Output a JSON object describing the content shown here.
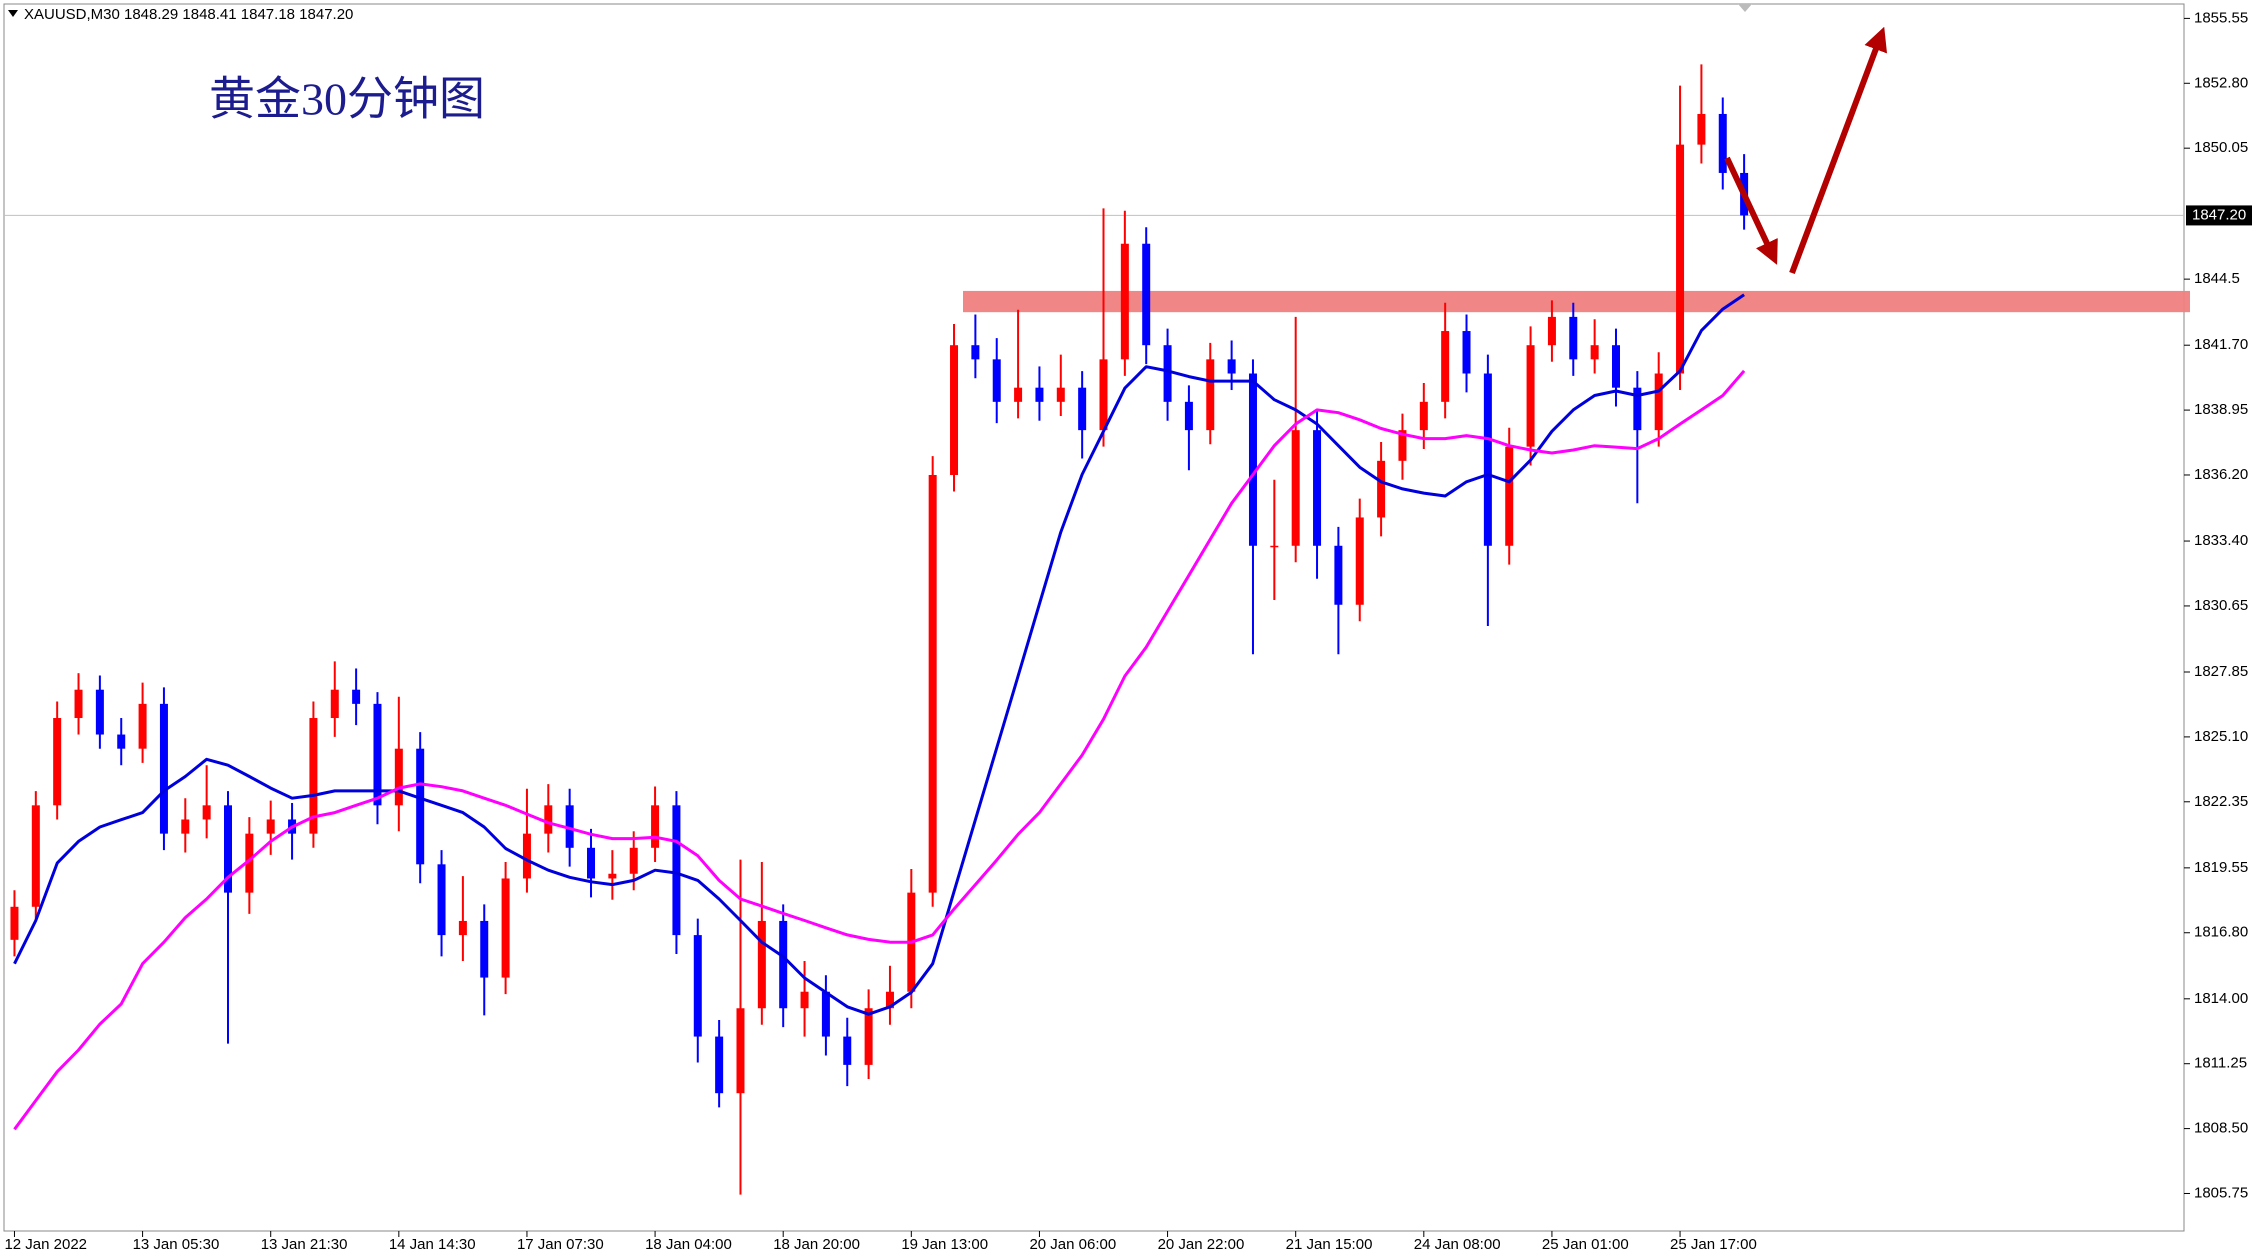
{
  "chart_data": {
    "type": "candlestick",
    "symbol": "XAUUSD,M30",
    "header_prices": "1848.29 1848.41 1847.18 1847.20",
    "title": "黄金30分钟图",
    "up_color": "#ff0000",
    "down_color": "#0000ff",
    "ylim": [
      1804.16,
      1856.16
    ],
    "xlim": [
      -0.49,
      101.6
    ],
    "yticks": [
      1855.55,
      {
        "value": 1852.8,
        "label": "1852.80"
      },
      1850.05,
      1844.5,
      {
        "value": 1841.7,
        "label": "1841.70"
      },
      1838.95,
      {
        "value": 1836.2,
        "label": "1836.20"
      },
      {
        "value": 1833.4,
        "label": "1833.40"
      },
      1830.65,
      1827.85,
      {
        "value": 1825.1,
        "label": "1825.10"
      },
      1822.35,
      1819.55,
      {
        "value": 1816.8,
        "label": "1816.80"
      },
      {
        "value": 1814.0,
        "label": "1814.00"
      },
      1811.25,
      {
        "value": 1808.5,
        "label": "1808.50"
      },
      1805.75
    ],
    "current_price": {
      "value": 1847.2,
      "label": "1847.20"
    },
    "xticks": [
      {
        "value": 0,
        "label": "12 Jan 2022"
      },
      {
        "value": 6,
        "label": "13 Jan 05:30"
      },
      {
        "value": 12,
        "label": "13 Jan 21:30"
      },
      {
        "value": 18,
        "label": "14 Jan 14:30"
      },
      {
        "value": 24,
        "label": "17 Jan 07:30"
      },
      {
        "value": 30,
        "label": "18 Jan 04:00"
      },
      {
        "value": 36,
        "label": "18 Jan 20:00"
      },
      {
        "value": 42,
        "label": "19 Jan 13:00"
      },
      {
        "value": 48,
        "label": "20 Jan 06:00"
      },
      {
        "value": 54,
        "label": "20 Jan 22:00"
      },
      {
        "value": 60,
        "label": "21 Jan 15:00"
      },
      {
        "value": 66,
        "label": "24 Jan 08:00"
      },
      {
        "value": 72,
        "label": "25 Jan 01:00"
      },
      {
        "value": 78,
        "label": "25 Jan 17:00"
      }
    ],
    "resistance_zone": {
      "low": 1843.1,
      "high": 1844.0,
      "color": "#f08080"
    },
    "ohlc": [
      [
        1816.5,
        1818.6,
        1815.8,
        1817.9
      ],
      [
        1817.9,
        1822.8,
        1817.3,
        1822.2
      ],
      [
        1822.2,
        1826.6,
        1821.6,
        1825.9
      ],
      [
        1825.9,
        1827.8,
        1825.2,
        1827.1
      ],
      [
        1827.1,
        1827.7,
        1824.6,
        1825.2
      ],
      [
        1825.2,
        1825.9,
        1823.9,
        1824.6
      ],
      [
        1824.6,
        1827.4,
        1824.0,
        1826.5
      ],
      [
        1826.5,
        1827.2,
        1820.3,
        1821.0
      ],
      [
        1821.0,
        1822.5,
        1820.2,
        1821.6
      ],
      [
        1821.6,
        1823.9,
        1820.8,
        1822.2
      ],
      [
        1822.2,
        1822.8,
        1812.1,
        1818.5
      ],
      [
        1818.5,
        1821.7,
        1817.6,
        1821.0
      ],
      [
        1821.0,
        1822.4,
        1820.1,
        1821.6
      ],
      [
        1821.6,
        1822.3,
        1819.9,
        1821.0
      ],
      [
        1821.0,
        1826.6,
        1820.4,
        1825.9
      ],
      [
        1825.9,
        1828.3,
        1825.1,
        1827.1
      ],
      [
        1827.1,
        1828.0,
        1825.6,
        1826.5
      ],
      [
        1826.5,
        1827.0,
        1821.4,
        1822.2
      ],
      [
        1822.2,
        1826.8,
        1821.1,
        1824.6
      ],
      [
        1824.6,
        1825.3,
        1818.9,
        1819.7
      ],
      [
        1819.7,
        1820.3,
        1815.8,
        1816.7
      ],
      [
        1816.7,
        1819.2,
        1815.6,
        1817.3
      ],
      [
        1817.3,
        1818.0,
        1813.3,
        1814.9
      ],
      [
        1814.9,
        1819.8,
        1814.2,
        1819.1
      ],
      [
        1819.1,
        1822.9,
        1818.5,
        1821.0
      ],
      [
        1821.0,
        1823.1,
        1820.2,
        1822.2
      ],
      [
        1822.2,
        1822.9,
        1819.6,
        1820.4
      ],
      [
        1820.4,
        1821.2,
        1818.3,
        1819.1
      ],
      [
        1819.1,
        1820.3,
        1818.2,
        1819.3
      ],
      [
        1819.3,
        1821.1,
        1818.6,
        1820.4
      ],
      [
        1820.4,
        1823.0,
        1819.8,
        1822.2
      ],
      [
        1822.2,
        1822.8,
        1815.9,
        1816.7
      ],
      [
        1816.7,
        1817.4,
        1811.3,
        1812.4
      ],
      [
        1812.4,
        1813.1,
        1809.4,
        1810.0
      ],
      [
        1810.0,
        1819.9,
        1805.7,
        1813.6
      ],
      [
        1813.6,
        1819.8,
        1812.9,
        1817.3
      ],
      [
        1817.3,
        1818.0,
        1812.8,
        1813.6
      ],
      [
        1813.6,
        1815.6,
        1812.4,
        1814.3
      ],
      [
        1814.3,
        1815.0,
        1811.6,
        1812.4
      ],
      [
        1812.4,
        1813.2,
        1810.3,
        1811.2
      ],
      [
        1811.2,
        1814.4,
        1810.6,
        1813.6
      ],
      [
        1813.6,
        1815.4,
        1812.9,
        1814.3
      ],
      [
        1814.3,
        1819.5,
        1813.6,
        1818.5
      ],
      [
        1818.5,
        1837.0,
        1817.9,
        1836.2
      ],
      [
        1836.2,
        1842.6,
        1835.5,
        1841.7
      ],
      [
        1841.7,
        1843.0,
        1840.3,
        1841.1
      ],
      [
        1841.1,
        1842.0,
        1838.4,
        1839.3
      ],
      [
        1839.3,
        1843.2,
        1838.6,
        1839.9
      ],
      [
        1839.9,
        1840.8,
        1838.5,
        1839.3
      ],
      [
        1839.3,
        1841.3,
        1838.7,
        1839.9
      ],
      [
        1839.9,
        1840.6,
        1836.9,
        1838.1
      ],
      [
        1838.1,
        1847.5,
        1837.4,
        1841.1
      ],
      [
        1841.1,
        1847.4,
        1840.4,
        1846.0
      ],
      [
        1846.0,
        1846.7,
        1840.9,
        1841.7
      ],
      [
        1841.7,
        1842.4,
        1838.5,
        1839.3
      ],
      [
        1839.3,
        1840.0,
        1836.4,
        1838.1
      ],
      [
        1838.1,
        1841.8,
        1837.5,
        1841.1
      ],
      [
        1841.1,
        1841.9,
        1839.8,
        1840.5
      ],
      [
        1840.5,
        1841.1,
        1828.6,
        1833.2
      ],
      [
        1833.2,
        1836.0,
        1830.9,
        1833.2
      ],
      [
        1833.2,
        1842.9,
        1832.5,
        1838.1
      ],
      [
        1838.1,
        1838.9,
        1831.8,
        1833.2
      ],
      [
        1833.2,
        1834.0,
        1828.6,
        1830.7
      ],
      [
        1830.7,
        1835.2,
        1830.0,
        1834.4
      ],
      [
        1834.4,
        1837.6,
        1833.6,
        1836.8
      ],
      [
        1836.8,
        1838.8,
        1836.0,
        1838.1
      ],
      [
        1838.1,
        1840.1,
        1837.3,
        1839.3
      ],
      [
        1839.3,
        1843.5,
        1838.6,
        1842.3
      ],
      [
        1842.3,
        1843.0,
        1839.7,
        1840.5
      ],
      [
        1840.5,
        1841.3,
        1829.8,
        1833.2
      ],
      [
        1833.2,
        1838.2,
        1832.4,
        1837.4
      ],
      [
        1837.4,
        1842.5,
        1836.6,
        1841.7
      ],
      [
        1841.7,
        1843.6,
        1841.0,
        1842.9
      ],
      [
        1842.9,
        1843.5,
        1840.4,
        1841.1
      ],
      [
        1841.1,
        1842.8,
        1840.5,
        1841.7
      ],
      [
        1841.7,
        1842.4,
        1839.1,
        1839.9
      ],
      [
        1839.9,
        1840.6,
        1835.0,
        1838.1
      ],
      [
        1838.1,
        1841.4,
        1837.4,
        1840.5
      ],
      [
        1840.5,
        1852.7,
        1839.8,
        1850.2
      ],
      [
        1850.2,
        1853.6,
        1849.4,
        1851.5
      ],
      [
        1851.5,
        1852.2,
        1848.3,
        1849.0
      ],
      [
        1849.0,
        1849.8,
        1846.6,
        1847.2
      ]
    ],
    "series": [
      {
        "color": "#0000dd",
        "values": [
          1815.49,
          1817.32,
          1819.75,
          1820.67,
          1821.28,
          1821.59,
          1821.89,
          1822.81,
          1823.42,
          1824.15,
          1823.9,
          1823.42,
          1822.93,
          1822.5,
          1822.62,
          1822.81,
          1822.81,
          1822.81,
          1822.81,
          1822.5,
          1822.2,
          1821.89,
          1821.28,
          1820.37,
          1819.88,
          1819.45,
          1819.15,
          1818.96,
          1818.84,
          1819.02,
          1819.45,
          1819.33,
          1819.02,
          1818.23,
          1817.32,
          1816.4,
          1815.79,
          1814.88,
          1814.27,
          1813.66,
          1813.35,
          1813.66,
          1814.27,
          1815.49,
          1818.54,
          1821.59,
          1824.63,
          1827.68,
          1830.73,
          1833.78,
          1836.22,
          1838.05,
          1839.88,
          1840.79,
          1840.61,
          1840.37,
          1840.18,
          1840.18,
          1840.18,
          1839.39,
          1838.96,
          1838.36,
          1837.44,
          1836.53,
          1835.91,
          1835.61,
          1835.43,
          1835.31,
          1835.91,
          1836.22,
          1835.91,
          1836.83,
          1838.05,
          1838.96,
          1839.57,
          1839.76,
          1839.57,
          1839.76,
          1840.61,
          1842.32,
          1843.23,
          1843.84
        ]
      },
      {
        "color": "#ff00ff",
        "values": [
          1808.47,
          1809.69,
          1810.91,
          1811.83,
          1812.93,
          1813.78,
          1815.49,
          1816.4,
          1817.44,
          1818.23,
          1819.15,
          1819.88,
          1820.67,
          1821.28,
          1821.71,
          1821.89,
          1822.2,
          1822.5,
          1822.93,
          1823.11,
          1822.99,
          1822.81,
          1822.5,
          1822.2,
          1821.83,
          1821.46,
          1821.22,
          1820.97,
          1820.79,
          1820.79,
          1820.85,
          1820.67,
          1820.06,
          1819.02,
          1818.23,
          1817.93,
          1817.62,
          1817.32,
          1817.01,
          1816.71,
          1816.52,
          1816.4,
          1816.4,
          1816.71,
          1817.8,
          1818.84,
          1819.88,
          1820.97,
          1821.89,
          1823.11,
          1824.33,
          1825.85,
          1827.68,
          1828.9,
          1830.43,
          1831.95,
          1833.48,
          1835.0,
          1836.22,
          1837.44,
          1838.36,
          1838.96,
          1838.84,
          1838.54,
          1838.17,
          1837.93,
          1837.74,
          1837.74,
          1837.87,
          1837.74,
          1837.44,
          1837.26,
          1837.13,
          1837.26,
          1837.44,
          1837.38,
          1837.32,
          1837.74,
          1838.36,
          1838.96,
          1839.57,
          1840.61
        ]
      }
    ]
  }
}
